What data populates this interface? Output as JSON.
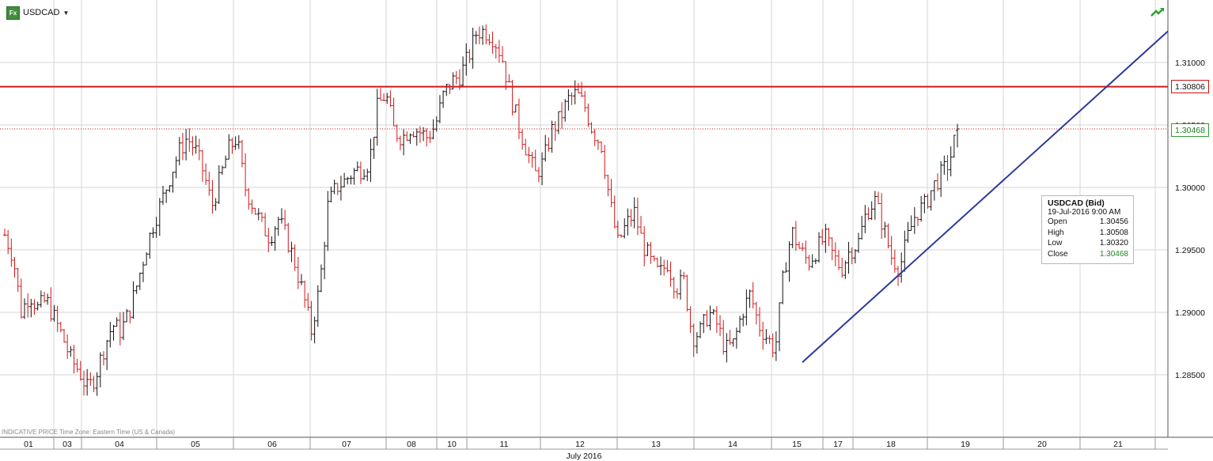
{
  "header": {
    "symbol_badge": "Fx",
    "symbol": "USDCAD",
    "dropdown_icon": "caret-down-icon",
    "trend_icon": "trend-arrow-icon"
  },
  "footnote": "INDICATIVE PRICE   Time Zone: Eastern Time (US & Canada)",
  "price_tags": {
    "resistance": "1.30806",
    "last": "1.30468"
  },
  "info_box": {
    "title": "USDCAD (Bid)",
    "datetime": "19-Jul-2016 9:00 AM",
    "rows": [
      {
        "label": "Open",
        "value": "1.30456"
      },
      {
        "label": "High",
        "value": "1.30508"
      },
      {
        "label": "Low",
        "value": "1.30320"
      },
      {
        "label": "Close",
        "value": "1.30468"
      }
    ]
  },
  "colors": {
    "up_bar": "#111111",
    "down_bar": "#d01818",
    "resistance_line": "#d01818",
    "trend_line": "#2c3a9e",
    "grid": "#d6d6d6",
    "last_price": "#2e9e2e"
  },
  "chart_data": {
    "type": "ohlc",
    "symbol": "USDCAD",
    "interval": "hourly",
    "month_label": "July 2016",
    "ylim": [
      1.28,
      1.315
    ],
    "y_ticks": [
      "1.28500",
      "1.29000",
      "1.29500",
      "1.30000",
      "1.30500",
      "1.31000"
    ],
    "x_ticks": [
      "01",
      "03",
      "04",
      "05",
      "06",
      "07",
      "08",
      "10",
      "11",
      "12",
      "13",
      "14",
      "15",
      "17",
      "18",
      "19",
      "20",
      "21"
    ],
    "grid": true,
    "horizontal_lines": [
      {
        "name": "resistance",
        "value": 1.30806,
        "style": "solid"
      },
      {
        "name": "last",
        "value": 1.30468,
        "style": "dotted"
      }
    ],
    "trend_line": {
      "from": {
        "date": "15-Jul",
        "value": 1.286
      },
      "to": {
        "date": "21-Jul",
        "value": 1.3125
      }
    },
    "last_bar": {
      "date": "19-Jul-2016 9:00 AM",
      "open": 1.30456,
      "high": 1.30508,
      "low": 1.3032,
      "close": 1.30468
    },
    "close_path": [
      1.2962,
      1.2945,
      1.29,
      1.2915,
      1.2903,
      1.291,
      1.2895,
      1.288,
      1.2862,
      1.2853,
      1.2838,
      1.285,
      1.2872,
      1.289,
      1.2885,
      1.29,
      1.2923,
      1.295,
      1.2972,
      1.299,
      1.301,
      1.3028,
      1.304,
      1.303,
      1.3012,
      1.2985,
      1.3007,
      1.303,
      1.304,
      1.3,
      1.2985,
      1.297,
      1.296,
      1.2975,
      1.296,
      1.294,
      1.2915,
      1.2885,
      1.292,
      1.2985,
      1.3,
      1.3005,
      1.3012,
      1.3015,
      1.302,
      1.3065,
      1.3075,
      1.3045,
      1.304,
      1.3048,
      1.3045,
      1.304,
      1.305,
      1.3075,
      1.3085,
      1.309,
      1.3105,
      1.3125,
      1.3125,
      1.312,
      1.3105,
      1.3075,
      1.305,
      1.303,
      1.301,
      1.302,
      1.3045,
      1.3055,
      1.307,
      1.3075,
      1.3065,
      1.3045,
      1.3035,
      1.299,
      1.2955,
      1.297,
      1.298,
      1.2955,
      1.294,
      1.293,
      1.294,
      1.292,
      1.2925,
      1.288,
      1.2885,
      1.29,
      1.289,
      1.287,
      1.2875,
      1.29,
      1.2915,
      1.289,
      1.288,
      1.287,
      1.293,
      1.2965,
      1.295,
      1.294,
      1.295,
      1.296,
      1.2945,
      1.2935,
      1.295,
      1.2955,
      1.298,
      1.299,
      1.297,
      1.2945,
      1.2935,
      1.296,
      1.298,
      1.2985,
      1.3,
      1.301,
      1.302,
      1.30468
    ]
  }
}
